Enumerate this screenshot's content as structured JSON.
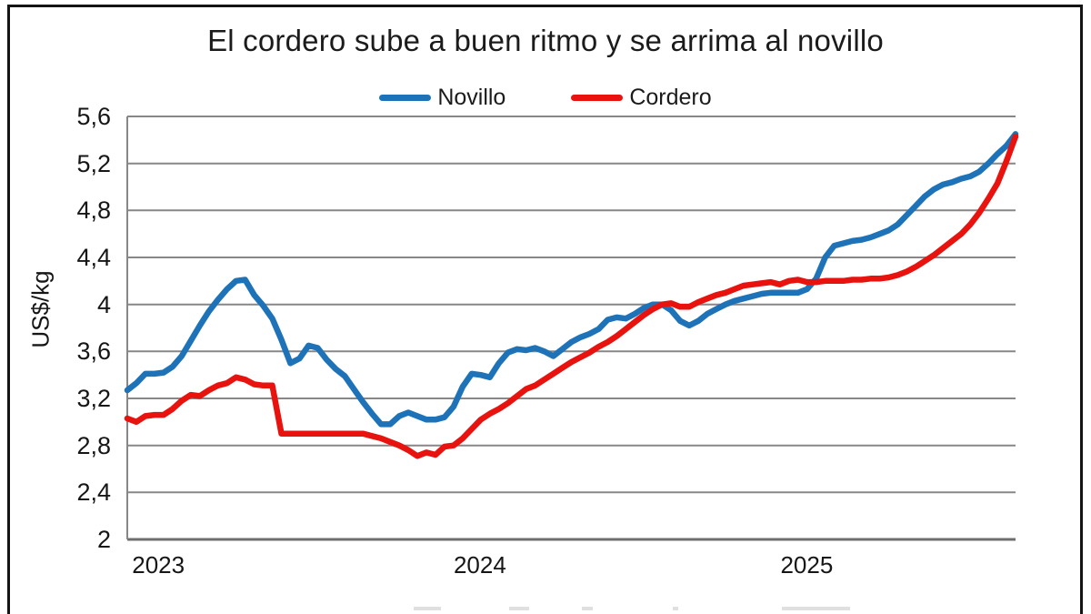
{
  "title": "El cordero sube a buen ritmo y se arrima al novillo",
  "y_axis": {
    "label": "US$/kg",
    "ticks": [
      "5,6",
      "5,2",
      "4,8",
      "4,4",
      "4",
      "3,6",
      "3,2",
      "2,8",
      "2,4",
      "2"
    ],
    "tick_values": [
      5.6,
      5.2,
      4.8,
      4.4,
      4.0,
      3.6,
      3.2,
      2.8,
      2.4,
      2.0
    ]
  },
  "x_axis": {
    "labels": [
      "2023",
      "2024",
      "2025"
    ],
    "positions": [
      0.035,
      0.397,
      0.765
    ]
  },
  "legend": {
    "position": "top-center"
  },
  "colors": {
    "novillo": "#1e73b8",
    "cordero": "#e8120f",
    "gridline": "#878787",
    "axis_line": "#6e6e6e",
    "text": "#1b1b1b"
  },
  "chart_data": {
    "type": "line",
    "title": "El cordero sube a buen ritmo y se arrima al novillo",
    "xlabel": "",
    "ylabel": "US$/kg",
    "ylim": [
      2.0,
      5.6
    ],
    "ytick_step": 0.4,
    "grid": "horizontal",
    "legend_position": "top-center",
    "x_tick_labels": [
      "2023",
      "2024",
      "2025"
    ],
    "series": [
      {
        "name": "Novillo",
        "color": "#1e73b8",
        "values": [
          3.27,
          3.33,
          3.41,
          3.41,
          3.42,
          3.47,
          3.56,
          3.69,
          3.82,
          3.94,
          4.04,
          4.13,
          4.2,
          4.21,
          4.08,
          3.99,
          3.88,
          3.7,
          3.5,
          3.54,
          3.65,
          3.63,
          3.53,
          3.45,
          3.39,
          3.28,
          3.17,
          3.07,
          2.98,
          2.98,
          3.05,
          3.08,
          3.05,
          3.02,
          3.02,
          3.04,
          3.13,
          3.3,
          3.41,
          3.4,
          3.38,
          3.5,
          3.59,
          3.62,
          3.61,
          3.63,
          3.6,
          3.56,
          3.62,
          3.68,
          3.72,
          3.75,
          3.79,
          3.87,
          3.89,
          3.88,
          3.92,
          3.97,
          4.0,
          4.0,
          3.95,
          3.86,
          3.82,
          3.86,
          3.92,
          3.96,
          4.0,
          4.03,
          4.05,
          4.07,
          4.09,
          4.1,
          4.1,
          4.1,
          4.1,
          4.13,
          4.22,
          4.4,
          4.5,
          4.52,
          4.54,
          4.55,
          4.57,
          4.6,
          4.63,
          4.68,
          4.76,
          4.84,
          4.92,
          4.98,
          5.02,
          5.04,
          5.07,
          5.09,
          5.13,
          5.2,
          5.28,
          5.35,
          5.45
        ]
      },
      {
        "name": "Cordero",
        "color": "#e8120f",
        "values": [
          3.03,
          3.0,
          3.05,
          3.06,
          3.06,
          3.11,
          3.18,
          3.23,
          3.22,
          3.27,
          3.31,
          3.33,
          3.38,
          3.36,
          3.32,
          3.31,
          3.31,
          2.9,
          2.9,
          2.9,
          2.9,
          2.9,
          2.9,
          2.9,
          2.9,
          2.9,
          2.9,
          2.88,
          2.86,
          2.83,
          2.8,
          2.76,
          2.71,
          2.74,
          2.72,
          2.79,
          2.8,
          2.86,
          2.94,
          3.02,
          3.07,
          3.11,
          3.16,
          3.22,
          3.28,
          3.31,
          3.36,
          3.41,
          3.46,
          3.51,
          3.55,
          3.59,
          3.64,
          3.68,
          3.73,
          3.79,
          3.85,
          3.91,
          3.96,
          4.0,
          4.01,
          3.98,
          3.98,
          4.02,
          4.05,
          4.08,
          4.1,
          4.13,
          4.16,
          4.17,
          4.18,
          4.19,
          4.17,
          4.2,
          4.21,
          4.19,
          4.19,
          4.2,
          4.2,
          4.2,
          4.21,
          4.21,
          4.22,
          4.22,
          4.23,
          4.25,
          4.28,
          4.32,
          4.37,
          4.42,
          4.48,
          4.54,
          4.6,
          4.68,
          4.78,
          4.9,
          5.03,
          5.22,
          5.43
        ]
      }
    ]
  }
}
